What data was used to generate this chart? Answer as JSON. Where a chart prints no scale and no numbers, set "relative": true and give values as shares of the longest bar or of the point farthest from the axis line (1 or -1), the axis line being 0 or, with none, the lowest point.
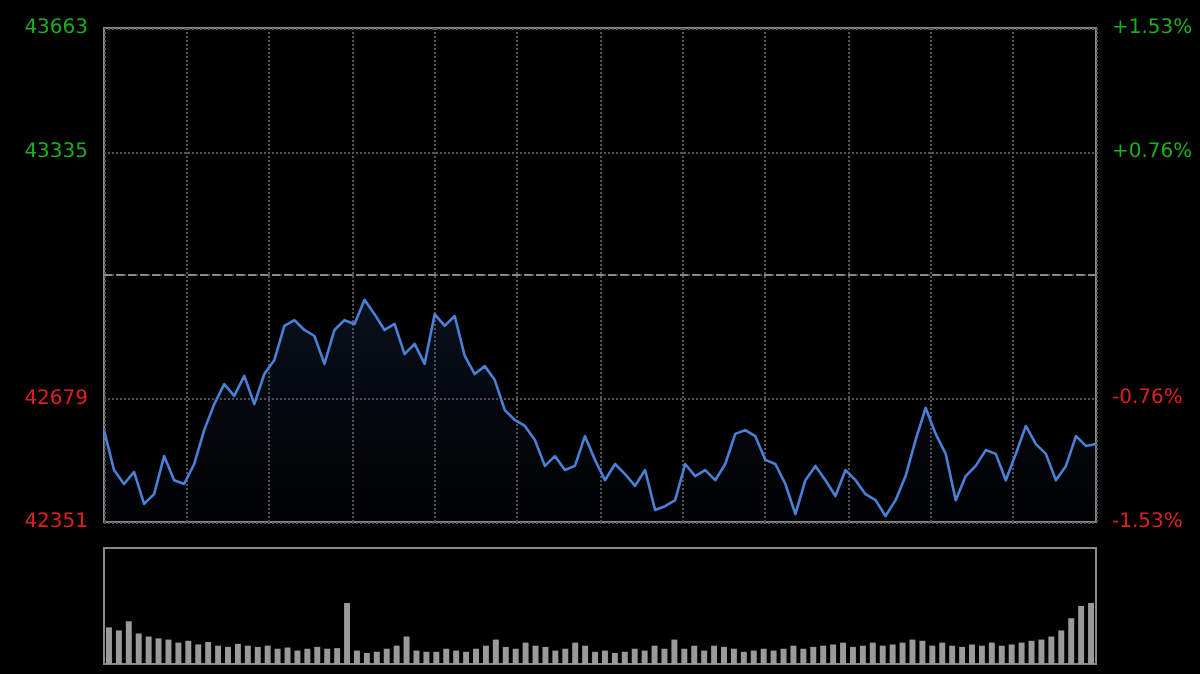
{
  "chart_data": [
    {
      "type": "area",
      "categories": [
        null,
        null,
        null,
        null,
        null,
        null,
        null,
        null,
        null,
        null,
        null,
        null,
        null,
        null,
        null,
        null,
        null,
        null,
        null,
        null,
        null,
        null,
        null,
        null,
        null,
        null,
        null,
        null,
        null,
        null,
        null,
        null,
        null,
        null,
        null,
        null,
        null,
        null,
        null,
        null,
        null,
        null,
        null,
        null,
        null,
        null,
        null,
        null,
        null,
        null,
        null,
        null,
        null,
        null,
        null,
        null,
        null,
        null,
        null,
        null,
        null,
        null,
        null,
        null,
        null,
        null,
        null,
        null,
        null,
        null,
        null,
        null,
        null,
        null,
        null,
        null,
        null,
        null,
        null,
        null,
        null,
        null,
        null,
        null,
        null,
        null,
        null,
        null,
        null,
        null,
        null,
        null,
        null,
        null,
        null,
        null,
        null,
        null,
        null,
        null
      ],
      "series": [
        {
          "color": "#4a80d8",
          "values": [
            42595,
            42489,
            42452,
            42484,
            42399,
            42425,
            42526,
            42462,
            42452,
            42505,
            42595,
            42664,
            42717,
            42686,
            42739,
            42664,
            42744,
            42781,
            42872,
            42887,
            42861,
            42845,
            42771,
            42861,
            42887,
            42877,
            42941,
            42903,
            42861,
            42877,
            42797,
            42824,
            42771,
            42903,
            42872,
            42898,
            42792,
            42744,
            42765,
            42728,
            42648,
            42622,
            42606,
            42569,
            42500,
            42526,
            42489,
            42500,
            42579,
            42516,
            42462,
            42505,
            42478,
            42447,
            42489,
            42383,
            42393,
            42409,
            42505,
            42473,
            42489,
            42462,
            42505,
            42585,
            42595,
            42579,
            42516,
            42505,
            42452,
            42372,
            42462,
            42500,
            42462,
            42420,
            42489,
            42462,
            42425,
            42409,
            42367,
            42409,
            42473,
            42569,
            42654,
            42585,
            42532,
            42409,
            42473,
            42500,
            42542,
            42532,
            42462,
            42532,
            42606,
            42558,
            42532,
            42462,
            42500,
            42579,
            42553,
            42558
          ]
        }
      ],
      "ylim": [
        42351,
        43663
      ],
      "yticks": [
        42351,
        42679,
        {
          "value": 43007,
          "label": null
        },
        43335,
        43663
      ],
      "y2lim": [
        -1.53,
        1.53
      ],
      "y2ticks": [
        {
          "value": -1.53,
          "label": "-1.53%"
        },
        {
          "value": -0.76,
          "label": "-0.76%"
        },
        {
          "value": 0.76,
          "label": "+0.76%"
        },
        {
          "value": 1.53,
          "label": "+1.53%"
        }
      ],
      "ref_lines": [
        {
          "axis": "y",
          "value": 43007,
          "line_style": "dashed",
          "color": "#888888"
        }
      ],
      "grid": true,
      "tick_labels": "y"
    },
    {
      "type": "bar",
      "relative": true,
      "tick_labels": false,
      "color": "#9a9a9a",
      "categories": [
        null,
        null,
        null,
        null,
        null,
        null,
        null,
        null,
        null,
        null,
        null,
        null,
        null,
        null,
        null,
        null,
        null,
        null,
        null,
        null,
        null,
        null,
        null,
        null,
        null,
        null,
        null,
        null,
        null,
        null,
        null,
        null,
        null,
        null,
        null,
        null,
        null,
        null,
        null,
        null,
        null,
        null,
        null,
        null,
        null,
        null,
        null,
        null,
        null,
        null,
        null,
        null,
        null,
        null,
        null,
        null,
        null,
        null,
        null,
        null,
        null,
        null,
        null,
        null,
        null,
        null,
        null,
        null,
        null,
        null,
        null,
        null,
        null,
        null,
        null,
        null,
        null,
        null,
        null,
        null,
        null,
        null,
        null,
        null,
        null,
        null,
        null,
        null,
        null,
        null,
        null,
        null,
        null,
        null,
        null,
        null,
        null,
        null,
        null,
        null
      ],
      "values": [
        0.6,
        0.55,
        0.7,
        0.5,
        0.45,
        0.42,
        0.4,
        0.35,
        0.38,
        0.32,
        0.36,
        0.3,
        0.28,
        0.33,
        0.3,
        0.28,
        0.3,
        0.25,
        0.27,
        0.22,
        0.25,
        0.28,
        0.25,
        0.26,
        1.0,
        0.22,
        0.18,
        0.2,
        0.25,
        0.3,
        0.45,
        0.22,
        0.2,
        0.2,
        0.25,
        0.22,
        0.2,
        0.25,
        0.3,
        0.4,
        0.28,
        0.25,
        0.35,
        0.3,
        0.28,
        0.22,
        0.25,
        0.35,
        0.3,
        0.2,
        0.22,
        0.18,
        0.2,
        0.25,
        0.22,
        0.3,
        0.25,
        0.4,
        0.25,
        0.3,
        0.22,
        0.3,
        0.28,
        0.25,
        0.2,
        0.22,
        0.25,
        0.22,
        0.25,
        0.3,
        0.25,
        0.28,
        0.3,
        0.32,
        0.35,
        0.28,
        0.3,
        0.35,
        0.3,
        0.32,
        0.35,
        0.4,
        0.38,
        0.3,
        0.35,
        0.3,
        0.28,
        0.32,
        0.3,
        0.35,
        0.3,
        0.32,
        0.35,
        0.38,
        0.4,
        0.45,
        0.55,
        0.75,
        0.95,
        1.0
      ]
    }
  ]
}
